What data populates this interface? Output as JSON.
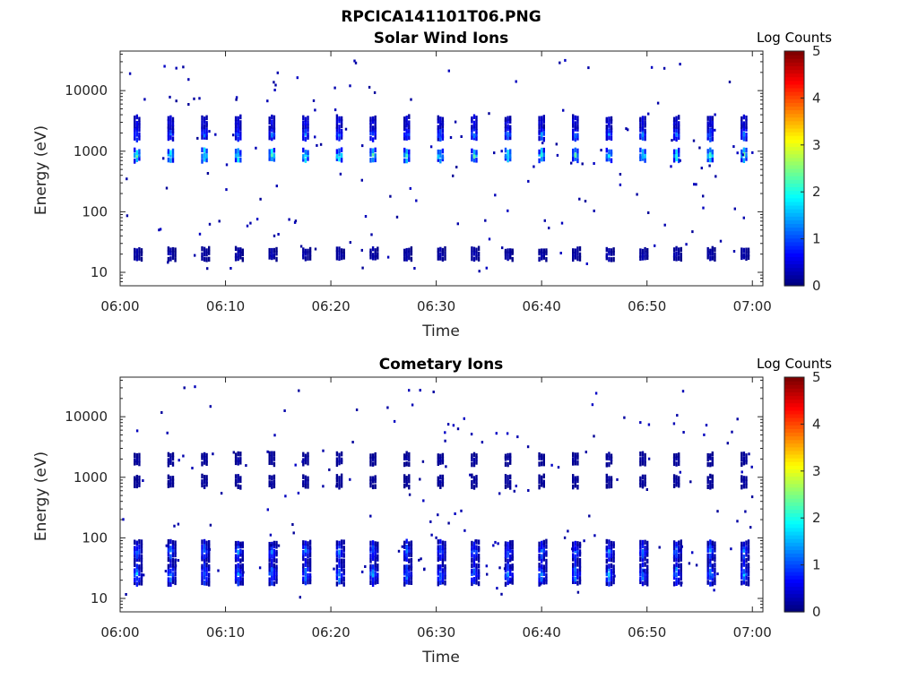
{
  "figure": {
    "title": "RPCICA141101T06.PNG"
  },
  "chart_data": [
    {
      "type": "heatmap",
      "title": "Solar Wind Ions",
      "xlabel": "Time",
      "ylabel": "Energy (eV)",
      "xticks": [
        "06:00",
        "06:10",
        "06:20",
        "06:30",
        "06:40",
        "06:50",
        "07:00"
      ],
      "yticks": [
        "10",
        "100",
        "1000",
        "10000"
      ],
      "yscale": "log",
      "ylim": [
        6,
        45000
      ],
      "xlim_minutes": [
        0,
        61
      ],
      "colorbar": {
        "label": "Log Counts",
        "ticks": [
          "0",
          "1",
          "2",
          "3",
          "4",
          "5"
        ],
        "range": [
          0,
          5
        ],
        "colormap": "jet"
      },
      "sweep_times_minutes": [
        1.5,
        4.7,
        7.9,
        11.1,
        14.3,
        17.5,
        20.7,
        23.9,
        27.1,
        30.3,
        33.5,
        36.7,
        39.9,
        43.1,
        46.3,
        49.5,
        52.7,
        55.9,
        59.1
      ],
      "bands": [
        {
          "energy_eV": 850,
          "log_counts_peak": 2.2
        },
        {
          "energy_eV": 1900,
          "log_counts_peak": 1.2
        },
        {
          "energy_eV": 3000,
          "log_counts_peak": 0.6
        },
        {
          "energy_eV": 20,
          "log_counts_peak": 0.3
        }
      ]
    },
    {
      "type": "heatmap",
      "title": "Cometary Ions",
      "xlabel": "Time",
      "ylabel": "Energy (eV)",
      "xticks": [
        "06:00",
        "06:10",
        "06:20",
        "06:30",
        "06:40",
        "06:50",
        "07:00"
      ],
      "yticks": [
        "10",
        "100",
        "1000",
        "10000"
      ],
      "yscale": "log",
      "ylim": [
        6,
        45000
      ],
      "xlim_minutes": [
        0,
        61
      ],
      "colorbar": {
        "label": "Log Counts",
        "ticks": [
          "0",
          "1",
          "2",
          "3",
          "4",
          "5"
        ],
        "range": [
          0,
          5
        ],
        "colormap": "jet"
      },
      "sweep_times_minutes": [
        1.5,
        4.7,
        7.9,
        11.1,
        14.3,
        17.5,
        20.7,
        23.9,
        27.1,
        30.3,
        33.5,
        36.7,
        39.9,
        43.1,
        46.3,
        49.5,
        52.7,
        55.9,
        59.1
      ],
      "bands": [
        {
          "energy_eV": 850,
          "log_counts_peak": 0.2
        },
        {
          "energy_eV": 2000,
          "log_counts_peak": 0.2
        },
        {
          "energy_eV": 25,
          "log_counts_peak": 1.5
        },
        {
          "energy_eV": 60,
          "log_counts_peak": 1.2
        }
      ]
    }
  ]
}
